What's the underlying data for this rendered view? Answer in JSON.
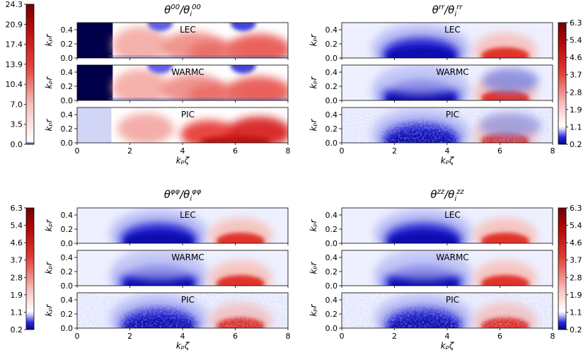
{
  "chart_data": [
    {
      "type": "heatmap",
      "title": "θ⁰⁰/θᵢ⁰⁰",
      "title_base": "θ",
      "title_sup": "00",
      "title_base2": "/θ",
      "title_sub": "i",
      "title_sup2": "00",
      "panels": [
        "LEC",
        "WARMC",
        "PIC"
      ],
      "xlabel": "kₚζ",
      "ylabel": "kₚr",
      "xlim": [
        0,
        8
      ],
      "ylim": [
        0,
        0.5
      ],
      "xticks": [
        "0",
        "2",
        "4",
        "6",
        "8"
      ],
      "yticks": [
        "0.0",
        "0.2",
        "0.4"
      ],
      "colorbar": {
        "ticks": [
          "24.3",
          "20.9",
          "17.4",
          "13.9",
          "10.4",
          "7.0",
          "3.5",
          "0.0"
        ],
        "side": "left"
      }
    },
    {
      "type": "heatmap",
      "title": "θʳʳ/θᵢʳʳ",
      "title_base": "θ",
      "title_sup": "rr",
      "title_base2": "/θ",
      "title_sub": "i",
      "title_sup2": "rr",
      "panels": [
        "LEC",
        "WARMC",
        "PIC"
      ],
      "xlabel": "kₚζ",
      "ylabel": "kₚr",
      "xlim": [
        0,
        8
      ],
      "ylim": [
        0,
        0.5
      ],
      "xticks": [
        "0",
        "2",
        "4",
        "6",
        "8"
      ],
      "yticks": [
        "0.0",
        "0.2",
        "0.4"
      ],
      "colorbar": {
        "ticks": [
          "6.3",
          "5.4",
          "4.6",
          "3.7",
          "2.8",
          "1.9",
          "1.1",
          "0.2"
        ],
        "side": "right"
      }
    },
    {
      "type": "heatmap",
      "title": "θᵠᵠ/θᵢᵠᵠ",
      "title_base": "θ",
      "title_sup": "φφ",
      "title_base2": "/θ",
      "title_sub": "i",
      "title_sup2": "φφ",
      "panels": [
        "LEC",
        "WARMC",
        "PIC"
      ],
      "xlabel": "kₚζ",
      "ylabel": "kₚr",
      "xlim": [
        0,
        8
      ],
      "ylim": [
        0,
        0.5
      ],
      "xticks": [
        "0",
        "2",
        "4",
        "6",
        "8"
      ],
      "yticks": [
        "0.0",
        "0.2",
        "0.4"
      ],
      "colorbar": {
        "ticks": [
          "6.3",
          "5.4",
          "4.6",
          "3.7",
          "2.8",
          "1.9",
          "1.1",
          "0.2"
        ],
        "side": "left"
      }
    },
    {
      "type": "heatmap",
      "title": "θᶻᶻ/θᵢᶻᶻ",
      "title_base": "θ",
      "title_sup": "zz",
      "title_base2": "/θ",
      "title_sub": "i",
      "title_sup2": "zz",
      "panels": [
        "LEC",
        "WARMC",
        "PIC"
      ],
      "xlabel": "kₚζ",
      "ylabel": "kₚr",
      "xlim": [
        0,
        8
      ],
      "ylim": [
        0,
        0.5
      ],
      "xticks": [
        "0",
        "2",
        "4",
        "6",
        "8"
      ],
      "yticks": [
        "0.0",
        "0.2",
        "0.4"
      ],
      "colorbar": {
        "ticks": [
          "6.3",
          "5.4",
          "4.6",
          "3.7",
          "2.8",
          "1.9",
          "1.1",
          "0.2"
        ],
        "side": "right"
      }
    }
  ],
  "colors": {
    "low": "#0a0a8c",
    "mid": "#ffffff",
    "high": "#8b0000"
  }
}
